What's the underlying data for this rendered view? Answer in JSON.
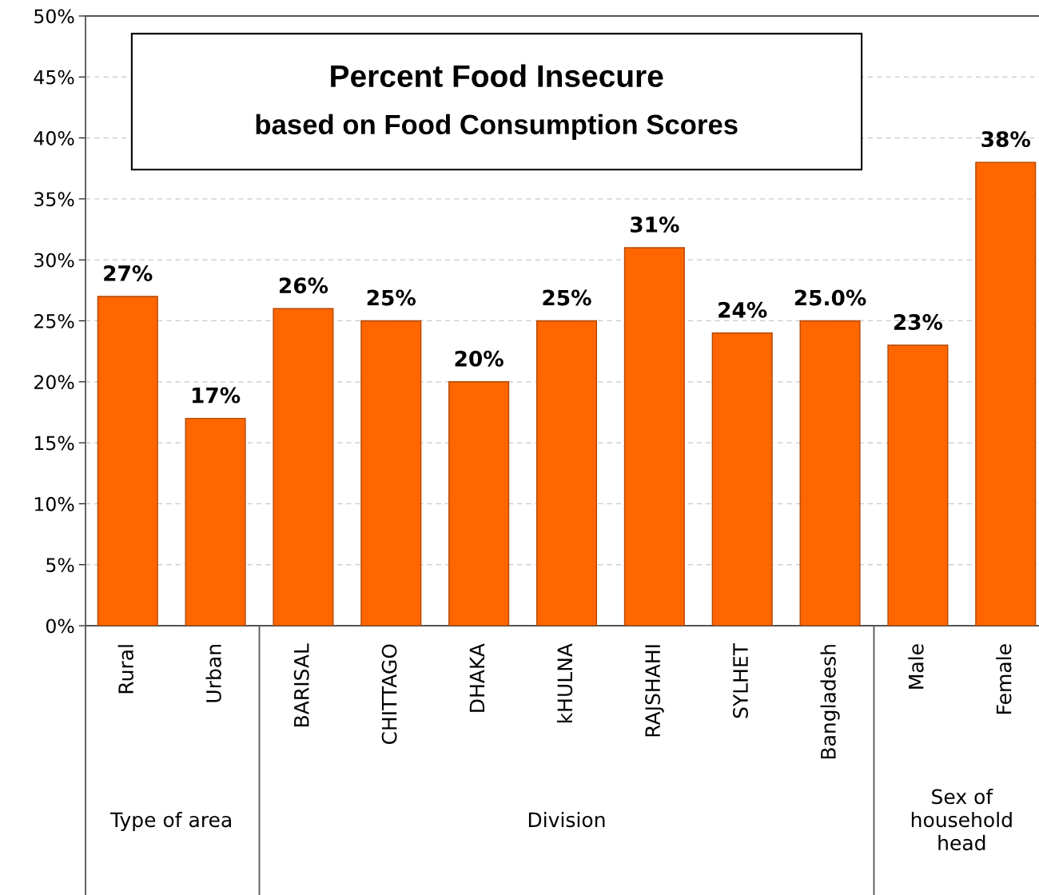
{
  "chart_data": {
    "type": "bar",
    "title": "Percent Food Insecure",
    "subtitle": "based on Food Consumption Scores",
    "categories": [
      "Rural",
      "Urban",
      "BARISAL",
      "CHITTAGO",
      "DHAKA",
      "kHULNA",
      "RAJSHAHI",
      "SYLHET",
      "Bangladesh",
      "Male",
      "Female"
    ],
    "values": [
      27,
      17,
      26,
      25,
      20,
      25,
      31,
      24,
      25.0,
      23,
      38
    ],
    "value_labels": [
      "27%",
      "17%",
      "26%",
      "25%",
      "20%",
      "25%",
      "31%",
      "24%",
      "25.0%",
      "23%",
      "38%"
    ],
    "color": "#ff6600",
    "ylim": [
      0,
      50
    ],
    "yticks": [
      {
        "value": 0,
        "label": "0%"
      },
      {
        "value": 5,
        "label": "5%"
      },
      {
        "value": 10,
        "label": "10%"
      },
      {
        "value": 15,
        "label": "15%"
      },
      {
        "value": 20,
        "label": "20%"
      },
      {
        "value": 25,
        "label": "25%"
      },
      {
        "value": 30,
        "label": "30%"
      },
      {
        "value": 35,
        "label": "35%"
      },
      {
        "value": 40,
        "label": "40%"
      },
      {
        "value": 45,
        "label": "45%"
      },
      {
        "value": 50,
        "label": "50%"
      }
    ],
    "grid": "y",
    "annotations": [
      "Type of area",
      "Division",
      "Sex of\nhousehold\nhead"
    ]
  }
}
